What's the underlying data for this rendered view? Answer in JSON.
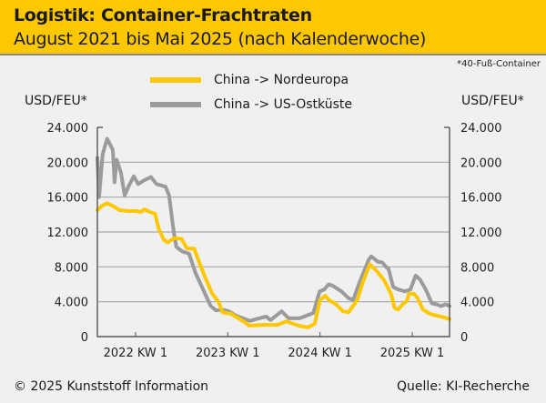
{
  "header": {
    "title": "Logistik: Container-Frachtraten",
    "subtitle": "August 2021 bis Mai 2025 (nach Kalenderwoche)"
  },
  "footnote": "*40-Fuß-Container",
  "footer": {
    "copyright": "© 2025 Kunststoff Information",
    "source": "Quelle: KI-Recherche"
  },
  "colors": {
    "background": "#f0f0f0",
    "header": "#fdc800",
    "nordeuropa": "#fdc800",
    "us_ostkueste": "#9b9b9b",
    "grid": "#a8a8a8",
    "axis": "#555555"
  },
  "chart_data": {
    "type": "line",
    "title": "Logistik: Container-Frachtraten",
    "subtitle": "August 2021 bis Mai 2025 (nach Kalenderwoche)",
    "xlabel": "",
    "ylabel_left": "USD/FEU*",
    "ylabel_right": "USD/FEU*",
    "x_unit": "weeks since 2022 KW 1",
    "xlim": [
      -21.5,
      177
    ],
    "ylim": [
      0,
      24000
    ],
    "yticks": [
      0,
      4000,
      8000,
      12000,
      16000,
      20000,
      24000
    ],
    "ytick_labels": [
      "0",
      "4.000",
      "8.000",
      "12.000",
      "16.000",
      "20.000",
      "24.000"
    ],
    "xticks": [
      0,
      52,
      104,
      156
    ],
    "xtick_labels": [
      "2022 KW 1",
      "2023 KW 1",
      "2024 KW 1",
      "2025 KW 1"
    ],
    "grid": true,
    "legend_position": "top-center",
    "series": [
      {
        "name": "China -> Nordeuropa",
        "color": "#fdc800",
        "points": [
          [
            -21.5,
            14500
          ],
          [
            -19,
            15000
          ],
          [
            -16,
            15300
          ],
          [
            -12,
            14900
          ],
          [
            -9,
            14500
          ],
          [
            -4,
            14400
          ],
          [
            0,
            14400
          ],
          [
            3,
            14300
          ],
          [
            5,
            14600
          ],
          [
            8,
            14300
          ],
          [
            11,
            14100
          ],
          [
            13,
            12400
          ],
          [
            16,
            11100
          ],
          [
            18,
            10800
          ],
          [
            22,
            11300
          ],
          [
            26,
            11200
          ],
          [
            29,
            10100
          ],
          [
            33,
            10100
          ],
          [
            35,
            9000
          ],
          [
            39,
            6900
          ],
          [
            43,
            5000
          ],
          [
            47,
            3900
          ],
          [
            49,
            2800
          ],
          [
            54,
            2600
          ],
          [
            62,
            1600
          ],
          [
            64,
            1250
          ],
          [
            72,
            1350
          ],
          [
            80,
            1350
          ],
          [
            85,
            1750
          ],
          [
            92,
            1250
          ],
          [
            97,
            1050
          ],
          [
            101,
            1450
          ],
          [
            104,
            4200
          ],
          [
            107,
            4700
          ],
          [
            109,
            4200
          ],
          [
            113,
            3700
          ],
          [
            117,
            2900
          ],
          [
            120,
            2800
          ],
          [
            125,
            4200
          ],
          [
            128,
            6200
          ],
          [
            132,
            8300
          ],
          [
            136,
            7500
          ],
          [
            140,
            6500
          ],
          [
            144,
            4900
          ],
          [
            146,
            3300
          ],
          [
            148,
            3100
          ],
          [
            151,
            3800
          ],
          [
            153,
            4100
          ],
          [
            154,
            4900
          ],
          [
            157,
            4900
          ],
          [
            159,
            4400
          ],
          [
            162,
            3100
          ],
          [
            166,
            2600
          ],
          [
            170,
            2400
          ],
          [
            174,
            2200
          ],
          [
            177,
            2000
          ]
        ]
      },
      {
        "name": "China -> US-Ostküste",
        "color": "#9b9b9b",
        "points": [
          [
            -21.5,
            20500
          ],
          [
            -20.5,
            16000
          ],
          [
            -18.5,
            20900
          ],
          [
            -16,
            22700
          ],
          [
            -14,
            21900
          ],
          [
            -12.8,
            21400
          ],
          [
            -11.8,
            17700
          ],
          [
            -10.7,
            20300
          ],
          [
            -8.2,
            18800
          ],
          [
            -6.1,
            16200
          ],
          [
            -4,
            17200
          ],
          [
            -1,
            18400
          ],
          [
            1.5,
            17500
          ],
          [
            4.6,
            17900
          ],
          [
            8.7,
            18300
          ],
          [
            11.8,
            17500
          ],
          [
            16.9,
            17200
          ],
          [
            18.9,
            16200
          ],
          [
            21.5,
            12100
          ],
          [
            23,
            10300
          ],
          [
            26.1,
            9800
          ],
          [
            30.2,
            9500
          ],
          [
            33.8,
            7300
          ],
          [
            36.3,
            6200
          ],
          [
            42.4,
            3500
          ],
          [
            45.5,
            3000
          ],
          [
            49,
            3100
          ],
          [
            52.6,
            2900
          ],
          [
            56.7,
            2400
          ],
          [
            64.4,
            1800
          ],
          [
            69.5,
            2100
          ],
          [
            73.6,
            2300
          ],
          [
            76.1,
            1900
          ],
          [
            82.3,
            2900
          ],
          [
            86.4,
            2100
          ],
          [
            92.5,
            2100
          ],
          [
            100.2,
            2700
          ],
          [
            103.8,
            5200
          ],
          [
            106.3,
            5400
          ],
          [
            108.9,
            6000
          ],
          [
            111.4,
            5800
          ],
          [
            116,
            5200
          ],
          [
            120.1,
            4400
          ],
          [
            122.7,
            4200
          ],
          [
            126.2,
            6200
          ],
          [
            131.4,
            8800
          ],
          [
            132.9,
            9200
          ],
          [
            136.5,
            8600
          ],
          [
            141.6,
            7900
          ],
          [
            139.1,
            8500
          ],
          [
            142.6,
            7800
          ],
          [
            145.2,
            5700
          ],
          [
            148.2,
            5400
          ],
          [
            151.8,
            5200
          ],
          [
            154.9,
            5400
          ],
          [
            157.9,
            7000
          ],
          [
            160.5,
            6500
          ],
          [
            163.6,
            5400
          ],
          [
            167.1,
            3800
          ],
          [
            169.7,
            3700
          ],
          [
            172.2,
            3500
          ],
          [
            174.8,
            3700
          ],
          [
            177,
            3500
          ]
        ]
      }
    ]
  },
  "legend": [
    {
      "label": "China -> Nordeuropa"
    },
    {
      "label": "China -> US-Ostküste"
    }
  ]
}
